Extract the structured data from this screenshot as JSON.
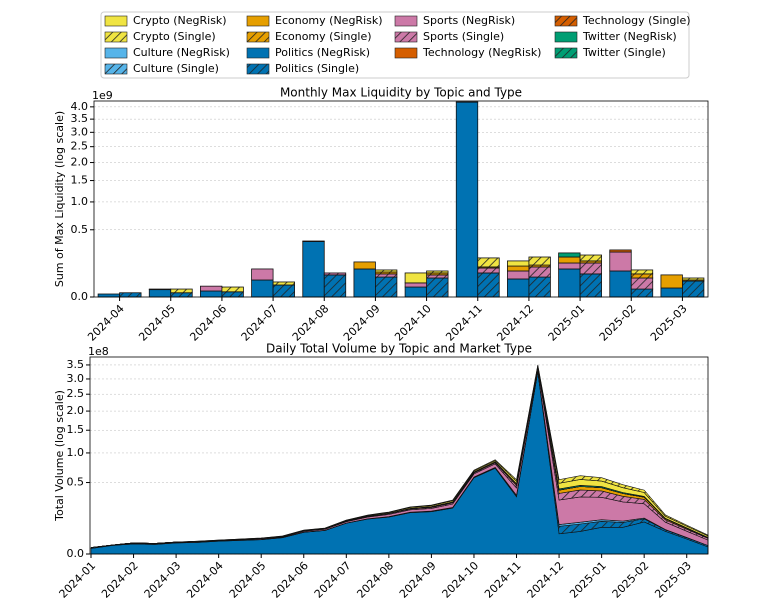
{
  "legend": {
    "series": [
      {
        "name": "Crypto (NegRisk)",
        "color": "#f0e442",
        "hatch": false
      },
      {
        "name": "Crypto (Single)",
        "color": "#f0e442",
        "hatch": true
      },
      {
        "name": "Culture (NegRisk)",
        "color": "#56b4e9",
        "hatch": false
      },
      {
        "name": "Culture (Single)",
        "color": "#56b4e9",
        "hatch": true
      },
      {
        "name": "Economy (NegRisk)",
        "color": "#e69f00",
        "hatch": false
      },
      {
        "name": "Economy (Single)",
        "color": "#e69f00",
        "hatch": true
      },
      {
        "name": "Politics (NegRisk)",
        "color": "#0072b2",
        "hatch": false
      },
      {
        "name": "Politics (Single)",
        "color": "#0072b2",
        "hatch": true
      },
      {
        "name": "Sports (NegRisk)",
        "color": "#cc79a7",
        "hatch": false
      },
      {
        "name": "Sports (Single)",
        "color": "#cc79a7",
        "hatch": true
      },
      {
        "name": "Technology (NegRisk)",
        "color": "#d55e00",
        "hatch": false
      },
      {
        "name": "Technology (Single)",
        "color": "#d55e00",
        "hatch": true
      },
      {
        "name": "Twitter (NegRisk)",
        "color": "#009e73",
        "hatch": false
      },
      {
        "name": "Twitter (Single)",
        "color": "#009e73",
        "hatch": true
      }
    ],
    "columns": 4
  },
  "stack_order": [
    6,
    7,
    2,
    3,
    8,
    9,
    4,
    5,
    10,
    11,
    12,
    13,
    0,
    1
  ],
  "chart_data": [
    {
      "type": "bar",
      "stacked": true,
      "title": "Monthly Max Liquidity by Topic and Type",
      "y_label": "Sum of Max Liquidity (log scale)",
      "y_offset_label": "1e9",
      "yscale": "sqrt",
      "grid": true,
      "categories": [
        "2024-04",
        "2024-05",
        "2024-06",
        "2024-07",
        "2024-08",
        "2024-09",
        "2024-10",
        "2024-11",
        "2024-12",
        "2025-01",
        "2025-02",
        "2025-03"
      ],
      "ylim": [
        0,
        4.25
      ],
      "yticks": [
        {
          "value": 0,
          "label": "0.0"
        },
        0.5,
        {
          "value": 1,
          "label": "1.0"
        },
        1.5,
        {
          "value": 2,
          "label": "2.0"
        },
        2.5,
        {
          "value": 3,
          "label": "3.0"
        },
        3.5,
        {
          "value": 4,
          "label": "4.0"
        }
      ],
      "series": [
        {
          "values": [
            0,
            0,
            0,
            0,
            0,
            0,
            0.042,
            0,
            0.038,
            0,
            0,
            0
          ]
        },
        {
          "values": [
            0,
            0.005,
            0.008,
            0.009,
            0,
            0.012,
            0.011,
            0.069,
            0.064,
            0.051,
            0.022,
            0.008
          ]
        },
        {
          "values": [
            0,
            0,
            0,
            0,
            0,
            0,
            0,
            0,
            0,
            0,
            0,
            0
          ]
        },
        {
          "values": [
            0,
            0,
            0,
            0,
            0,
            0,
            0,
            0,
            0,
            0,
            0,
            0
          ]
        },
        {
          "values": [
            0,
            0,
            0,
            0,
            0,
            0.049,
            0,
            0,
            0.031,
            0.049,
            0,
            0.045
          ]
        },
        {
          "values": [
            0,
            0,
            0,
            0,
            0,
            0.01,
            0.01,
            0.007,
            0.013,
            0.016,
            0.019,
            0.004
          ]
        },
        {
          "values": [
            0.001,
            0.006,
            0.004,
            0.032,
            0.34,
            0.087,
            0.011,
            4.2,
            0.036,
            0.087,
            0.075,
            0.009
          ]
        },
        {
          "values": [
            0.002,
            0.002,
            0.003,
            0.016,
            0.054,
            0.044,
            0.04,
            0.064,
            0.044,
            0.059,
            0.007,
            0.028
          ]
        },
        {
          "values": [
            0,
            0.001,
            0.009,
            0.055,
            0.007,
            0,
            0.011,
            0.01,
            0.039,
            0.041,
            0.149,
            0
          ]
        },
        {
          "values": [
            0,
            0,
            0,
            0,
            0.01,
            0.015,
            0.014,
            0.029,
            0.056,
            0.069,
            0.033,
            0
          ]
        },
        {
          "values": [
            0,
            0,
            0,
            0,
            0,
            0,
            0,
            0,
            0,
            0,
            0.021,
            0
          ]
        },
        {
          "values": [
            0,
            0,
            0,
            0,
            0,
            0,
            0,
            0,
            0,
            0,
            0,
            0
          ]
        },
        {
          "values": [
            0,
            0,
            0,
            0,
            0,
            0,
            0,
            0,
            0,
            0.038,
            0,
            0
          ]
        },
        {
          "values": [
            0,
            0,
            0,
            0,
            0,
            0,
            0,
            0,
            0,
            0,
            0,
            0
          ]
        }
      ]
    },
    {
      "type": "area",
      "stacked": true,
      "title": "Daily Total Volume by Topic and Market Type",
      "y_label": "Total Volume (log scale)",
      "y_offset_label": "1e8",
      "yscale": "sqrt",
      "grid": true,
      "categories": [
        "2024-01",
        null,
        "2024-02",
        null,
        "2024-03",
        null,
        "2024-04",
        null,
        "2024-05",
        null,
        "2024-06",
        null,
        "2024-07",
        null,
        "2024-08",
        null,
        "2024-09",
        null,
        "2024-10",
        null,
        "2024-11",
        null,
        "2024-12",
        null,
        "2025-01",
        null,
        "2025-02",
        null,
        "2025-03",
        null
      ],
      "ylim": [
        0,
        3.8
      ],
      "yticks": [
        {
          "value": 0,
          "label": "0.0"
        },
        0.5,
        {
          "value": 1,
          "label": "1.0"
        },
        1.5,
        {
          "value": 2,
          "label": "2.0"
        },
        2.5,
        {
          "value": 3,
          "label": "3.0"
        },
        3.5
      ],
      "series": [
        {
          "values": [
            0,
            0,
            0,
            0,
            0,
            0.001,
            0.001,
            0.001,
            0.001,
            0.001,
            0.002,
            0.002,
            0.003,
            0.005,
            0.006,
            0.008,
            0.009,
            0.012,
            0.018,
            0.022,
            0.033,
            0.038,
            0.075,
            0.083,
            0.075,
            0.06,
            0.045,
            0.015,
            0.009,
            0.005
          ]
        },
        {
          "values": [
            0,
            0,
            0,
            0,
            0,
            0,
            0,
            0,
            0,
            0.001,
            0.001,
            0.001,
            0.002,
            0.003,
            0.004,
            0.005,
            0.006,
            0.008,
            0.012,
            0.015,
            0.022,
            0.025,
            0.05,
            0.055,
            0.05,
            0.04,
            0.03,
            0.01,
            0.006,
            0.003
          ]
        },
        {
          "values": [
            0,
            0,
            0,
            0,
            0,
            0,
            0,
            0,
            0,
            0,
            0,
            0,
            0,
            0,
            0.001,
            0.001,
            0.001,
            0.001,
            0.002,
            0.003,
            0.004,
            0.004,
            0.01,
            0.011,
            0.01,
            0.008,
            0.006,
            0.002,
            0.001,
            0
          ]
        },
        {
          "values": [
            0,
            0,
            0,
            0,
            0,
            0,
            0,
            0,
            0,
            0,
            0,
            0,
            0,
            0,
            0,
            0,
            0,
            0,
            0,
            0,
            0,
            0,
            0,
            0,
            0,
            0,
            0,
            0,
            0,
            0
          ]
        },
        {
          "values": [
            0,
            0,
            0,
            0,
            0,
            0,
            0,
            0,
            0,
            0,
            0,
            0.001,
            0.002,
            0.002,
            0.003,
            0.004,
            0.005,
            0.006,
            0.01,
            0.012,
            0.018,
            0.02,
            0.04,
            0.044,
            0.04,
            0.032,
            0.024,
            0.008,
            0.005,
            0.002
          ]
        },
        {
          "values": [
            0,
            0,
            0,
            0,
            0,
            0,
            0,
            0,
            0,
            0,
            0,
            0,
            0,
            0,
            0,
            0,
            0,
            0,
            0,
            0,
            0,
            0,
            0,
            0,
            0,
            0,
            0,
            0,
            0,
            0
          ]
        },
        {
          "values": [
            0.003,
            0.007,
            0.01,
            0.009,
            0.012,
            0.013,
            0.016,
            0.018,
            0.02,
            0.026,
            0.046,
            0.054,
            0.093,
            0.119,
            0.133,
            0.167,
            0.175,
            0.206,
            0.57,
            0.72,
            0.32,
            3.25,
            0.04,
            0.05,
            0.07,
            0.07,
            0.1,
            0.05,
            0.022,
            0.005
          ]
        },
        {
          "values": [
            0.001,
            0.001,
            0.001,
            0.001,
            0.001,
            0.001,
            0.001,
            0.001,
            0.001,
            0.001,
            0.001,
            0.001,
            0.001,
            0.002,
            0.003,
            0.003,
            0.004,
            0.006,
            0.008,
            0.011,
            0.015,
            0.017,
            0.035,
            0.038,
            0.035,
            0.028,
            0.021,
            0.007,
            0.004,
            0.002
          ]
        },
        {
          "values": [
            0,
            0,
            0.001,
            0.001,
            0.001,
            0.001,
            0.001,
            0.002,
            0.002,
            0.002,
            0.004,
            0.005,
            0.008,
            0.012,
            0.016,
            0.02,
            0.024,
            0.032,
            0.048,
            0.06,
            0.088,
            0.1,
            0.2,
            0.22,
            0.2,
            0.16,
            0.12,
            0.04,
            0.024,
            0.012
          ]
        },
        {
          "values": [
            0,
            0,
            0,
            0,
            0,
            0,
            0,
            0,
            0.001,
            0.001,
            0.002,
            0.002,
            0.003,
            0.005,
            0.006,
            0.008,
            0.009,
            0.012,
            0.018,
            0.022,
            0.033,
            0.038,
            0.075,
            0.083,
            0.075,
            0.06,
            0.045,
            0.015,
            0.009,
            0.005
          ]
        },
        {
          "values": [
            0,
            0,
            0,
            0,
            0,
            0,
            0,
            0,
            0,
            0,
            0,
            0,
            0,
            0,
            0,
            0,
            0,
            0,
            0,
            0,
            0,
            0,
            0,
            0,
            0,
            0,
            0,
            0,
            0,
            0
          ]
        },
        {
          "values": [
            0,
            0,
            0,
            0,
            0,
            0,
            0,
            0,
            0,
            0,
            0,
            0,
            0,
            0,
            0,
            0,
            0,
            0,
            0,
            0,
            0,
            0,
            0,
            0,
            0,
            0,
            0,
            0,
            0,
            0
          ]
        },
        {
          "values": [
            0,
            0,
            0,
            0,
            0,
            0,
            0,
            0,
            0,
            0,
            0,
            0,
            0.001,
            0.001,
            0.001,
            0.001,
            0.002,
            0.003,
            0.004,
            0.005,
            0.007,
            0.008,
            0.015,
            0.016,
            0.015,
            0.012,
            0.009,
            0.003,
            0.002,
            0.001
          ]
        },
        {
          "values": [
            0,
            0,
            0,
            0,
            0,
            0,
            0,
            0,
            0,
            0,
            0,
            0,
            0,
            0,
            0,
            0,
            0,
            0,
            0,
            0,
            0,
            0,
            0,
            0,
            0,
            0,
            0,
            0,
            0,
            0
          ]
        }
      ]
    }
  ]
}
